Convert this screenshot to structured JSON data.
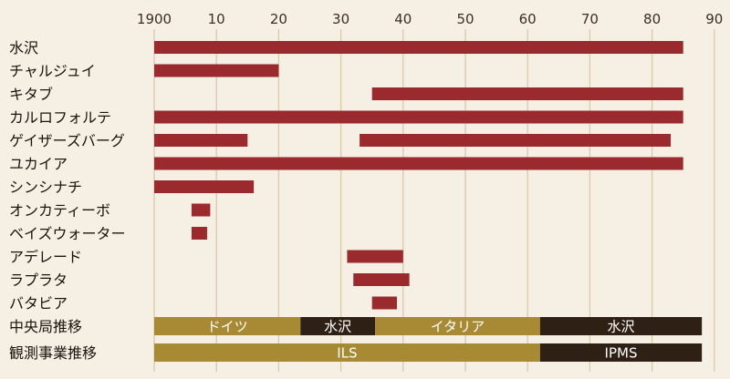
{
  "chart_data": {
    "type": "bar",
    "title": "",
    "xlabel": "",
    "ylabel": "",
    "xlim": [
      0,
      90
    ],
    "grid": true,
    "tick_labels": [
      "1900",
      "10",
      "20",
      "30",
      "40",
      "50",
      "60",
      "70",
      "80",
      "90"
    ],
    "tick_values": [
      0,
      10,
      20,
      30,
      40,
      50,
      60,
      70,
      80,
      90
    ],
    "bar_color": "#9b2a2e",
    "rows": [
      {
        "label": "水沢",
        "spans": [
          [
            0,
            85
          ]
        ]
      },
      {
        "label": "チャルジュイ",
        "spans": [
          [
            0,
            20
          ]
        ]
      },
      {
        "label": "キタブ",
        "spans": [
          [
            35,
            85
          ]
        ]
      },
      {
        "label": "カルロフォルテ",
        "spans": [
          [
            0,
            85
          ]
        ]
      },
      {
        "label": "ゲイザーズバーグ",
        "spans": [
          [
            0,
            15
          ],
          [
            33,
            83
          ]
        ]
      },
      {
        "label": "ユカイア",
        "spans": [
          [
            0,
            85
          ]
        ]
      },
      {
        "label": "シンシナチ",
        "spans": [
          [
            0,
            16
          ]
        ]
      },
      {
        "label": "オンカティーボ",
        "spans": [
          [
            6,
            9
          ]
        ]
      },
      {
        "label": "ベイズウォーター",
        "spans": [
          [
            6,
            8.5
          ]
        ]
      },
      {
        "label": "アデレード",
        "spans": [
          [
            31,
            40
          ]
        ]
      },
      {
        "label": "ラプラタ",
        "spans": [
          [
            32,
            41
          ]
        ]
      },
      {
        "label": "バタビア",
        "spans": [
          [
            35,
            39
          ]
        ]
      }
    ],
    "band_rows": [
      {
        "label": "中央局推移",
        "segments": [
          {
            "start": 0,
            "end": 23.5,
            "text": "ドイツ",
            "color": "#a88a35"
          },
          {
            "start": 23.5,
            "end": 35.5,
            "text": "水沢",
            "color": "#2f2016"
          },
          {
            "start": 35.5,
            "end": 62,
            "text": "イタリア",
            "color": "#a88a35"
          },
          {
            "start": 62,
            "end": 88,
            "text": "水沢",
            "color": "#2f2016"
          }
        ]
      },
      {
        "label": "観測事業推移",
        "segments": [
          {
            "start": 0,
            "end": 62,
            "text": "ILS",
            "color": "#a88a35"
          },
          {
            "start": 62,
            "end": 88,
            "text": "IPMS",
            "color": "#2f2016"
          }
        ]
      }
    ]
  },
  "colors": {
    "background": "#f6efe3",
    "grid": "#d9c9ad"
  }
}
